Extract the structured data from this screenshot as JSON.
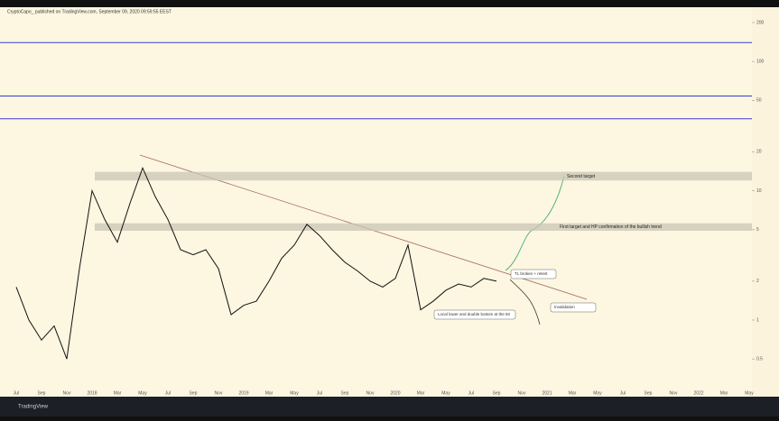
{
  "header": {
    "author": "CryptoCapo_ published on TradingView.com, September 09, 2020 09:59:55 EEST"
  },
  "footer": {
    "brand": "TradingView"
  },
  "chart_data": {
    "type": "line",
    "log_scale": true,
    "color": "#111111",
    "categories": [
      "Jul",
      null,
      "Sep",
      null,
      "Nov",
      null,
      "2018",
      null,
      "Mar",
      null,
      "May",
      null,
      "Jul",
      null,
      "Sep",
      null,
      "Nov",
      null,
      "2019",
      null,
      "Mar",
      null,
      "May",
      null,
      "Jul",
      null,
      "Sep",
      null,
      "Nov",
      null,
      "2020",
      null,
      "Mar",
      null,
      "May",
      null,
      "Jul",
      null,
      "Sep",
      null,
      "Nov",
      null,
      "2021",
      null,
      "Mar",
      null,
      "May",
      null,
      "Jul",
      null,
      "Sep",
      null,
      "Nov",
      null,
      "2022",
      null,
      "Mar",
      null,
      "May"
    ],
    "values": [
      1.8,
      1.0,
      0.7,
      0.9,
      0.5,
      2.5,
      10,
      6,
      4,
      8,
      15,
      9,
      6,
      3.5,
      3.2,
      3.5,
      2.5,
      1.1,
      1.3,
      1.4,
      2.0,
      3.0,
      3.8,
      5.5,
      4.5,
      3.5,
      2.8,
      2.4,
      2.0,
      1.8,
      2.1,
      3.8,
      1.2,
      1.4,
      1.7,
      1.9,
      1.8,
      2.1,
      2.0,
      null,
      null,
      null,
      null,
      null,
      null,
      null,
      null,
      null,
      null,
      null,
      null,
      null,
      null,
      null,
      null,
      null,
      null,
      null,
      null
    ],
    "ylim": [
      0.3,
      200
    ],
    "yticks": [
      0.5,
      1,
      2,
      5,
      10,
      20,
      50,
      100,
      200
    ],
    "levels": {
      "color": "#3b3bd6",
      "values": [
        140,
        54,
        36
      ]
    },
    "zones": [
      {
        "label": "Second target",
        "range": [
          12,
          14
        ]
      },
      {
        "label": "First target and HP confirmation of the bullish trend",
        "range": [
          4.9,
          5.6
        ]
      }
    ],
    "annotations": [
      "TL broken + retest",
      "Invalidation",
      "Local lower and double bottom at the 50"
    ]
  }
}
